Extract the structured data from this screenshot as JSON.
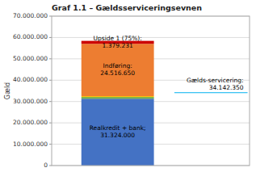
{
  "chart_data": {
    "type": "bar",
    "stacked": true,
    "title": "Graf 1.1 – Gældsserviceringsevnen",
    "ylabel": "Gæld",
    "categories": [
      null
    ],
    "ylim": [
      0,
      70000000
    ],
    "yticks": [
      0,
      {
        "value": 10000000,
        "label": "10.000.000"
      },
      {
        "value": 20000000,
        "label": "20.000.000"
      },
      {
        "value": 30000000,
        "label": "30.000.000"
      },
      {
        "value": 40000000,
        "label": "40.000.000"
      },
      {
        "value": 50000000,
        "label": "50.000.000"
      },
      {
        "value": 60000000,
        "label": "60.000.000"
      },
      {
        "value": 70000000,
        "label": "70.000.000"
      }
    ],
    "grid": true,
    "series": [
      {
        "values": [
          31324000
        ],
        "value_labels": [
          "Realkredit + bank;\n31.324.000"
        ],
        "color": "#4472C4"
      },
      {
        "values": [
          800000
        ],
        "color": "#70AD47"
      },
      {
        "values": [
          400000
        ],
        "color": "#FFC000"
      },
      {
        "values": [
          24516650
        ],
        "value_labels": [
          "Indføring:\n24.516.650"
        ],
        "color": "#ED7D31"
      },
      {
        "values": [
          1379231
        ],
        "value_labels": [
          "Upside 1 (75%):\n1.379.231"
        ],
        "color": "#CC0000"
      }
    ],
    "reference_line": {
      "value": 34142350,
      "label": "Gælds-servicering:\n34.142.350",
      "color": "#00B0F0"
    }
  }
}
